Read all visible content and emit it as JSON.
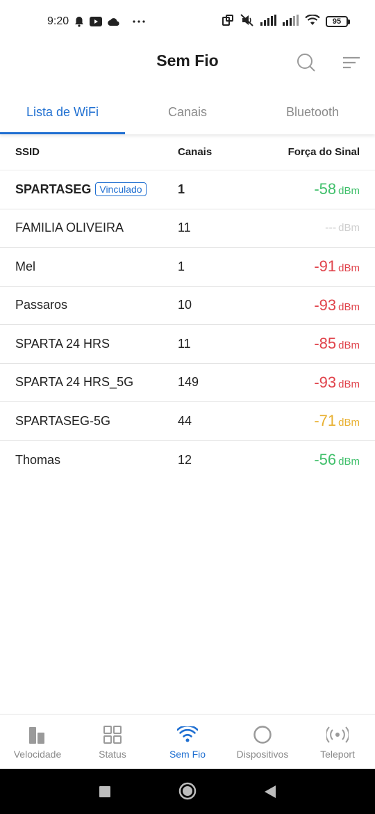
{
  "status_bar": {
    "time": "9:20",
    "battery": "95"
  },
  "header": {
    "title": "Sem Fio"
  },
  "tabs": [
    {
      "label": "Lista de WiFi",
      "active": true
    },
    {
      "label": "Canais",
      "active": false
    },
    {
      "label": "Bluetooth",
      "active": false
    }
  ],
  "table": {
    "columns": {
      "ssid": "SSID",
      "channels": "Canais",
      "signal": "Força do Sinal"
    },
    "rows": [
      {
        "ssid": "SPARTASEG",
        "badge": "Vinculado",
        "channel": "1",
        "signal": "-58",
        "unit": "dBm",
        "color": "green"
      },
      {
        "ssid": "FAMILIA OLIVEIRA",
        "channel": "11",
        "signal": "---",
        "unit": "dBm",
        "color": "gray"
      },
      {
        "ssid": "Mel",
        "channel": "1",
        "signal": "-91",
        "unit": "dBm",
        "color": "red"
      },
      {
        "ssid": "Passaros",
        "channel": "10",
        "signal": "-93",
        "unit": "dBm",
        "color": "red"
      },
      {
        "ssid": "SPARTA 24 HRS",
        "channel": "11",
        "signal": "-85",
        "unit": "dBm",
        "color": "red"
      },
      {
        "ssid": "SPARTA 24 HRS_5G",
        "channel": "149",
        "signal": "-93",
        "unit": "dBm",
        "color": "red"
      },
      {
        "ssid": "SPARTASEG-5G",
        "channel": "44",
        "signal": "-71",
        "unit": "dBm",
        "color": "orange"
      },
      {
        "ssid": "Thomas",
        "channel": "12",
        "signal": "-56",
        "unit": "dBm",
        "color": "green"
      }
    ]
  },
  "bottom_nav": [
    {
      "label": "Velocidade",
      "icon": "bar-chart-icon"
    },
    {
      "label": "Status",
      "icon": "grid-icon"
    },
    {
      "label": "Sem Fio",
      "icon": "wifi-icon",
      "active": true
    },
    {
      "label": "Dispositivos",
      "icon": "circle-icon"
    },
    {
      "label": "Teleport",
      "icon": "teleport-icon"
    }
  ],
  "colors": {
    "accent": "#1f6fd1",
    "green": "#3fbf6a",
    "red": "#e0434b",
    "orange": "#e8b030",
    "gray": "#cfcfcf"
  }
}
